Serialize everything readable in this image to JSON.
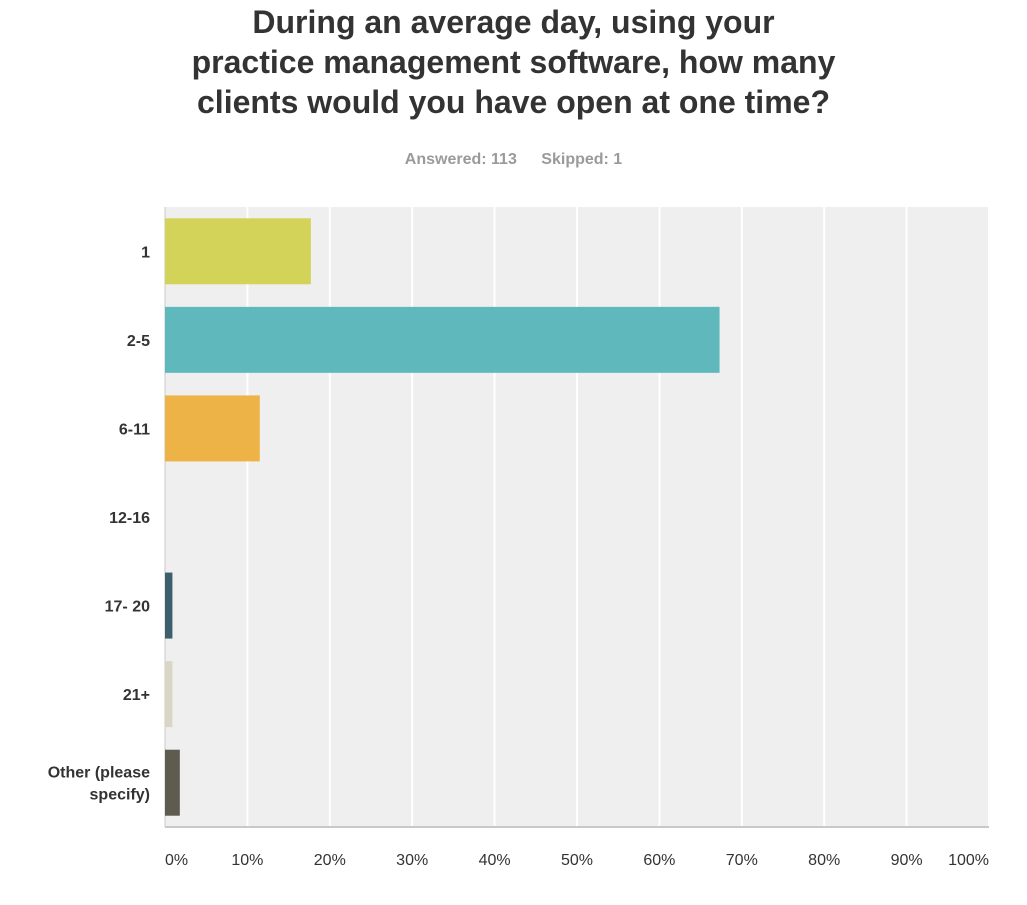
{
  "chart_data": {
    "type": "bar",
    "orientation": "horizontal",
    "title_lines": [
      "During an average day, using your",
      "practice management software, how many",
      "clients would you have open at one time?"
    ],
    "answered_label": "Answered: 113",
    "skipped_label": "Skipped: 1",
    "categories": [
      "1",
      "2-5",
      "6-11",
      "12-16",
      "17- 20",
      "21+",
      "Other (please specify)"
    ],
    "category_label_lines": [
      [
        "1"
      ],
      [
        "2-5"
      ],
      [
        "6-11"
      ],
      [
        "12-16"
      ],
      [
        "17- 20"
      ],
      [
        "21+"
      ],
      [
        "Other (please",
        "specify)"
      ]
    ],
    "values": [
      17.7,
      67.3,
      11.5,
      0,
      0.9,
      0.9,
      1.8
    ],
    "colors": [
      "#d3d35a",
      "#5fb9bc",
      "#eeb346",
      "#7a9cba",
      "#3d5e6c",
      "#d9d6c6",
      "#5e5c4f"
    ],
    "xlim": [
      0,
      100
    ],
    "x_ticks": [
      "0%",
      "10%",
      "20%",
      "30%",
      "40%",
      "50%",
      "60%",
      "70%",
      "80%",
      "90%",
      "100%"
    ],
    "grid": true,
    "plot_background": "#efefef",
    "grid_color": "#ffffff"
  }
}
